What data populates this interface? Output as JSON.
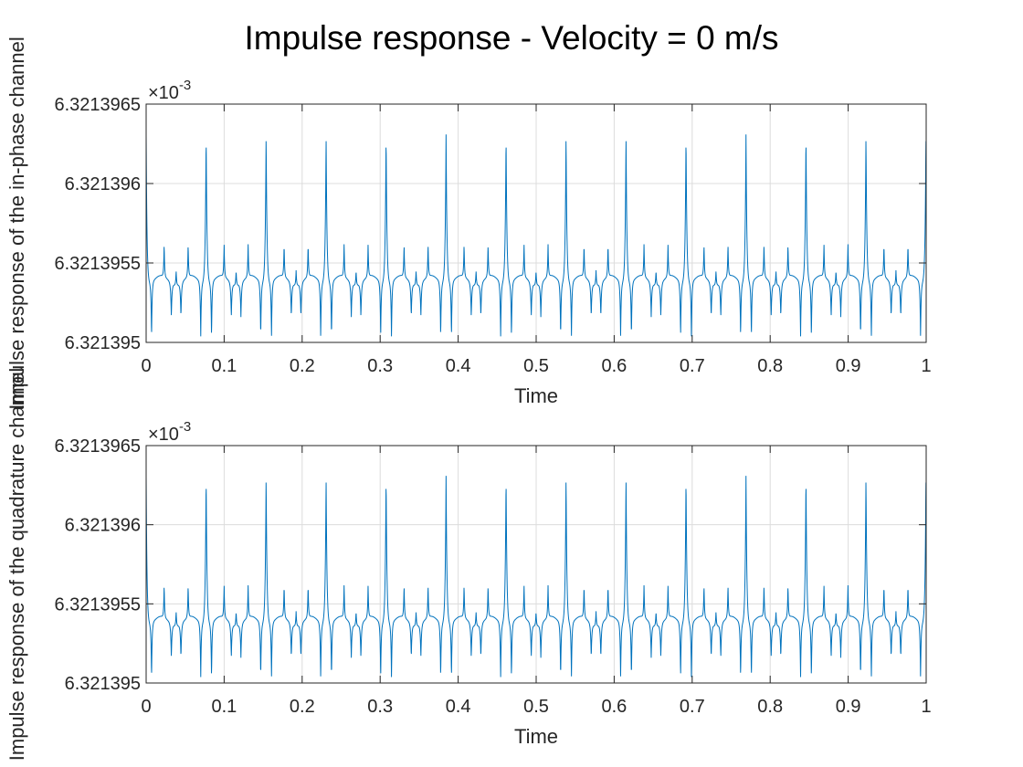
{
  "figure": {
    "title": "Impulse response - Velocity = 0 m/s"
  },
  "colors": {
    "line": "#0072BD",
    "axes": "#262626",
    "grid": "#dcdcdc"
  },
  "chart_data": [
    {
      "type": "line",
      "xlabel": "Time",
      "ylabel": "Impulse response of the in-phase channel",
      "exponent_label": "×10",
      "exponent_power": "-3",
      "xlim": [
        0,
        1
      ],
      "ylim": [
        6.321395,
        6.3213965
      ],
      "x_ticks": [
        "0",
        "0.1",
        "0.2",
        "0.3",
        "0.4",
        "0.5",
        "0.6",
        "0.7",
        "0.8",
        "0.9",
        "1"
      ],
      "y_ticks": [
        "6.321395",
        "6.3213955",
        "6.321396",
        "6.3213965"
      ],
      "grid": true,
      "signal": {
        "period": 0.0769,
        "baseline": 6.32139539,
        "peak_max": 6.32139634,
        "trough_min": 6.321395,
        "spike_times": [
          0,
          0.077,
          0.154,
          0.231,
          0.308,
          0.385,
          0.462,
          0.538,
          0.615,
          0.692,
          0.769,
          0.846,
          0.923,
          1.0
        ]
      }
    },
    {
      "type": "line",
      "xlabel": "Time",
      "ylabel": "Impulse response of the quadrature channel",
      "exponent_label": "×10",
      "exponent_power": "-3",
      "xlim": [
        0,
        1
      ],
      "ylim": [
        6.321395,
        6.3213965
      ],
      "x_ticks": [
        "0",
        "0.1",
        "0.2",
        "0.3",
        "0.4",
        "0.5",
        "0.6",
        "0.7",
        "0.8",
        "0.9",
        "1"
      ],
      "y_ticks": [
        "6.321395",
        "6.3213955",
        "6.321396",
        "6.3213965"
      ],
      "grid": true,
      "signal": {
        "period": 0.0769,
        "baseline": 6.32139539,
        "peak_max": 6.32139634,
        "trough_min": 6.321395,
        "spike_times": [
          0,
          0.077,
          0.154,
          0.231,
          0.308,
          0.385,
          0.462,
          0.538,
          0.615,
          0.692,
          0.769,
          0.846,
          0.923,
          1.0
        ]
      }
    }
  ]
}
